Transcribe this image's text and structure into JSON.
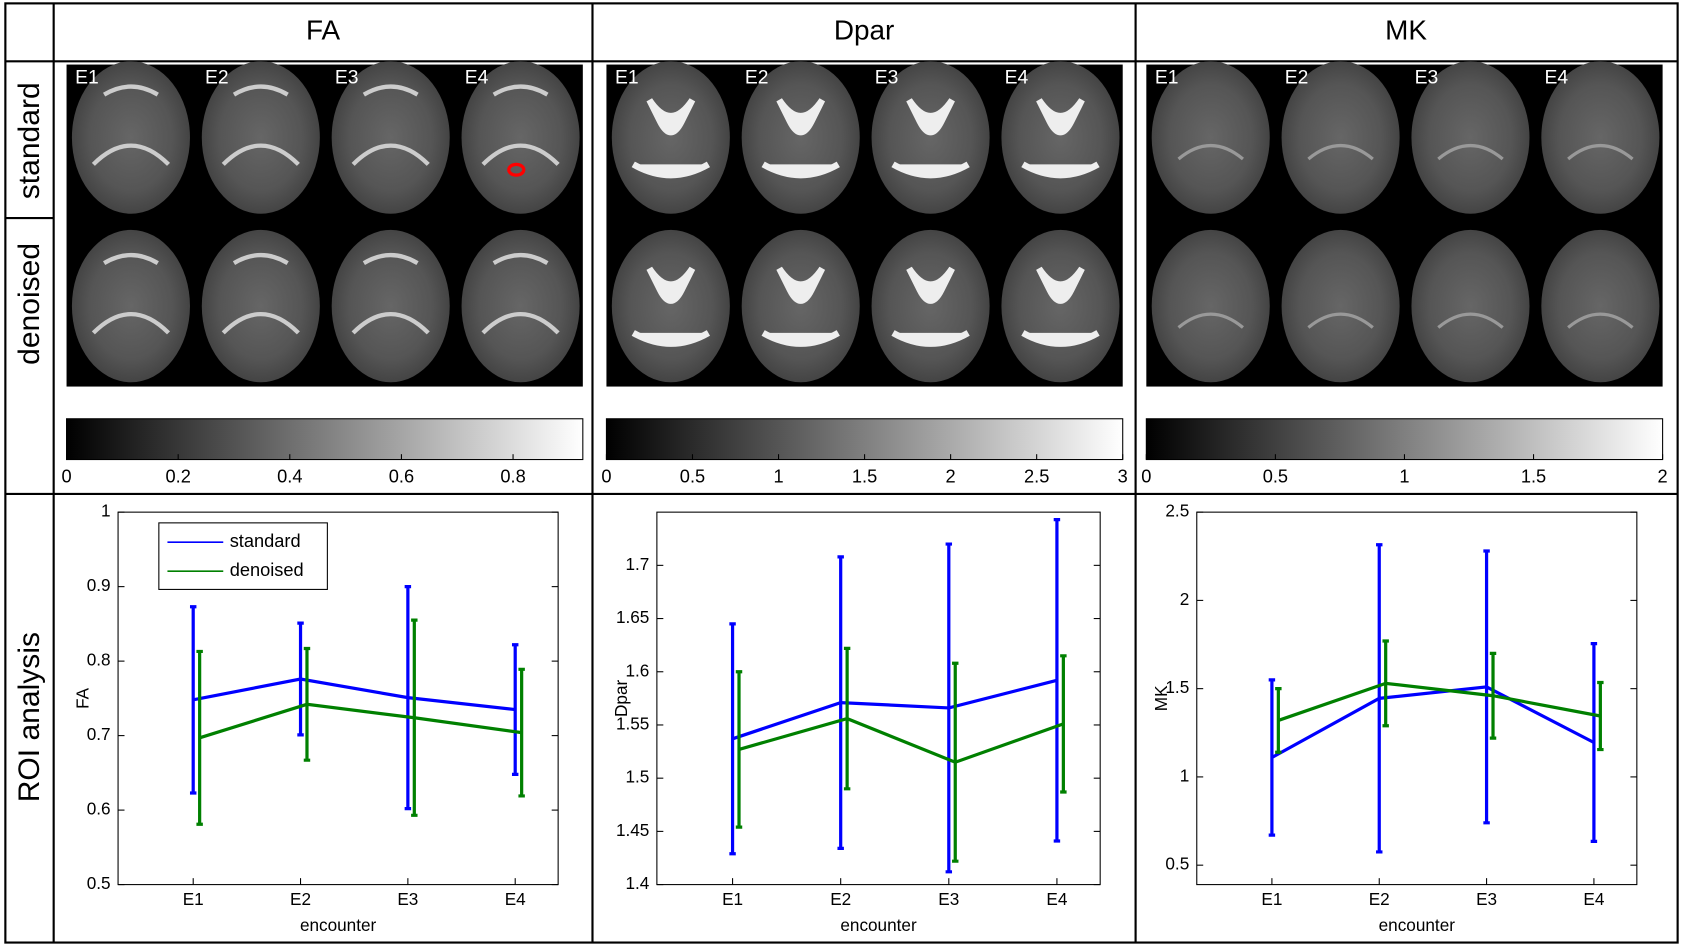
{
  "column_headers": [
    "FA",
    "Dpar",
    "MK"
  ],
  "row_labels": [
    "standard",
    "denoised",
    "ROI analysis"
  ],
  "image_labels": [
    "E1",
    "E2",
    "E3",
    "E4"
  ],
  "colorbars": [
    {
      "lim": [
        0,
        0.925
      ],
      "ticks": [
        0,
        0.2,
        0.4,
        0.6,
        0.8
      ]
    },
    {
      "lim": [
        0,
        3
      ],
      "ticks": [
        0,
        0.5,
        1,
        1.5,
        2,
        2.5,
        3
      ]
    },
    {
      "lim": [
        0,
        2
      ],
      "ticks": [
        0,
        0.5,
        1,
        1.5,
        2
      ]
    }
  ],
  "chart_data": [
    {
      "type": "line",
      "x_label": "encounter",
      "y_label": "FA",
      "categories": [
        "E1",
        "E2",
        "E3",
        "E4"
      ],
      "series": [
        {
          "name": "standard",
          "color": "#0000ff",
          "values": [
            0.748,
            0.776,
            0.751,
            0.735
          ],
          "errors": [
            0.125,
            0.075,
            0.149,
            0.087
          ]
        },
        {
          "name": "denoised",
          "color": "#008000",
          "values": [
            0.697,
            0.742,
            0.724,
            0.704
          ],
          "errors": [
            0.116,
            0.075,
            0.131,
            0.085
          ]
        }
      ],
      "ylim": [
        0.5,
        1
      ],
      "yticks": [
        0.5,
        0.6,
        0.7,
        0.8,
        0.9,
        1
      ],
      "legend": "upper left"
    },
    {
      "type": "line",
      "x_label": "encounter",
      "y_label": "Dpar",
      "categories": [
        "E1",
        "E2",
        "E3",
        "E4"
      ],
      "series": [
        {
          "color": "#0000ff",
          "values": [
            1.537,
            1.571,
            1.566,
            1.592
          ],
          "errors": [
            0.108,
            0.137,
            0.154,
            0.151
          ]
        },
        {
          "color": "#008000",
          "values": [
            1.527,
            1.556,
            1.515,
            1.551
          ],
          "errors": [
            0.073,
            0.066,
            0.093,
            0.064
          ]
        }
      ],
      "ylim": [
        1.4,
        1.75
      ],
      "yticks": [
        1.4,
        1.45,
        1.5,
        1.55,
        1.6,
        1.65,
        1.7
      ]
    },
    {
      "type": "line",
      "x_label": "encounter",
      "y_label": "MK",
      "categories": [
        "E1",
        "E2",
        "E3",
        "E4"
      ],
      "series": [
        {
          "color": "#0000ff",
          "values": [
            1.11,
            1.445,
            1.51,
            1.195
          ],
          "errors": [
            0.44,
            0.87,
            0.77,
            0.56
          ]
        },
        {
          "color": "#008000",
          "values": [
            1.32,
            1.53,
            1.46,
            1.345
          ],
          "errors": [
            0.18,
            0.24,
            0.24,
            0.19
          ]
        }
      ],
      "ylim": [
        0.39,
        2.5
      ],
      "yticks": [
        0.5,
        1,
        1.5,
        2,
        2.5
      ]
    }
  ]
}
